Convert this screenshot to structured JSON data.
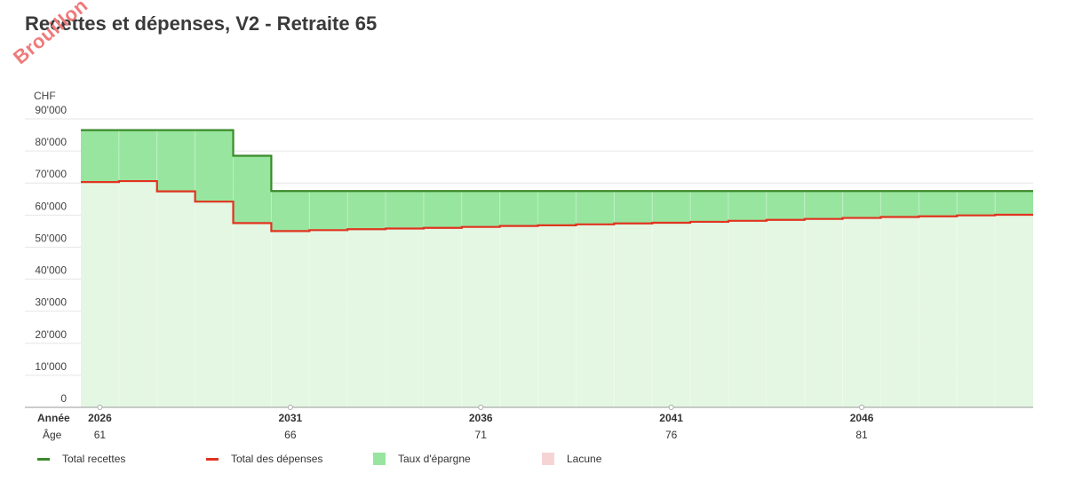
{
  "title": "Recettes et dépenses, V2 - Retraite 65",
  "watermark": "Brouillon",
  "chart_data": {
    "type": "line",
    "currency_label": "CHF",
    "ylim": [
      0,
      90000
    ],
    "y_ticks": [
      "0",
      "10'000",
      "20'000",
      "30'000",
      "40'000",
      "50'000",
      "60'000",
      "70'000",
      "80'000",
      "90'000"
    ],
    "x_row_label": "Année",
    "age_row_label": "Âge",
    "x_tick_labels": [
      "2026",
      "2031",
      "2036",
      "2041",
      "2046"
    ],
    "age_tick_labels": [
      "61",
      "66",
      "71",
      "76",
      "81"
    ],
    "years": [
      2026,
      2027,
      2028,
      2029,
      2030,
      2031,
      2032,
      2033,
      2034,
      2035,
      2036,
      2037,
      2038,
      2039,
      2040,
      2041,
      2042,
      2043,
      2044,
      2045,
      2046,
      2047,
      2048,
      2049,
      2050
    ],
    "series": [
      {
        "name": "Total recettes",
        "color": "#3a8a2a",
        "values": [
          86500,
          86500,
          86500,
          86500,
          78500,
          67500,
          67500,
          67500,
          67500,
          67500,
          67500,
          67500,
          67500,
          67500,
          67500,
          67500,
          67500,
          67500,
          67500,
          67500,
          67500,
          67500,
          67500,
          67500,
          67500
        ]
      },
      {
        "name": "Total des dépenses",
        "color": "#e0341f",
        "values": [
          70300,
          70600,
          67400,
          64200,
          57500,
          55000,
          55300,
          55600,
          55800,
          56000,
          56300,
          56600,
          56800,
          57100,
          57400,
          57600,
          57900,
          58200,
          58500,
          58800,
          59100,
          59400,
          59600,
          59900,
          60100
        ]
      }
    ],
    "legend": [
      {
        "label": "Total recettes",
        "kind": "line",
        "color": "#3a8a2a"
      },
      {
        "label": "Total des dépenses",
        "kind": "line",
        "color": "#e0341f"
      },
      {
        "label": "Taux d'épargne",
        "kind": "box",
        "color": "#98e59f"
      },
      {
        "label": "Lacune",
        "kind": "box",
        "color": "#f6d4d4"
      }
    ],
    "area_colors": {
      "savings": "#98e59f",
      "expenses": "#e3f7e3"
    },
    "grid": true
  }
}
